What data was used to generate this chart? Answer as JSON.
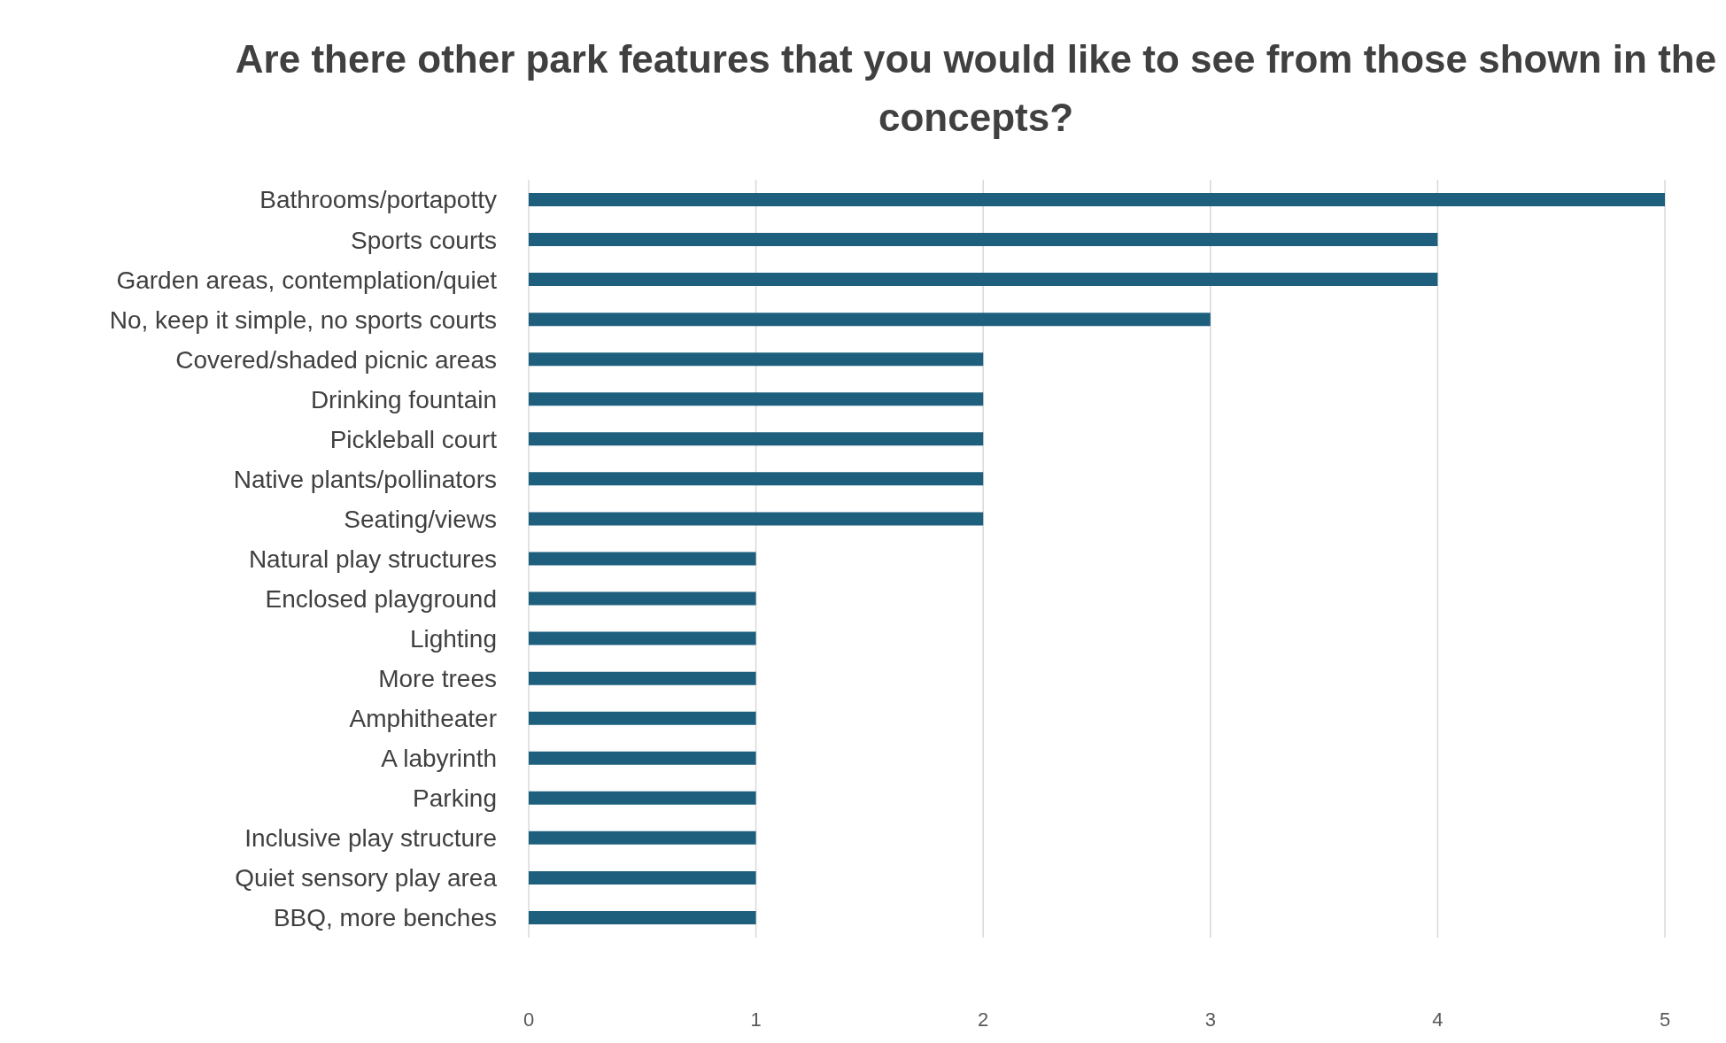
{
  "chart_data": {
    "type": "bar",
    "orientation": "horizontal",
    "title": "Are there other park features that you would like to see from those shown in the concepts?",
    "categories": [
      "Bathrooms/portapotty",
      "Sports courts",
      "Garden areas, contemplation/quiet",
      "No, keep it simple, no sports courts",
      "Covered/shaded picnic areas",
      "Drinking fountain",
      "Pickleball court",
      "Native plants/pollinators",
      "Seating/views",
      "Natural play structures",
      "Enclosed playground",
      "Lighting",
      "More trees",
      "Amphitheater",
      "A labyrinth",
      "Parking",
      "Inclusive play structure",
      "Quiet sensory play area",
      "BBQ, more benches"
    ],
    "values": [
      5,
      4,
      4,
      3,
      2,
      2,
      2,
      2,
      2,
      1,
      1,
      1,
      1,
      1,
      1,
      1,
      1,
      1,
      1
    ],
    "color": "#1d5f7d",
    "xlim": [
      0,
      5
    ],
    "xticks": [
      0,
      1,
      2,
      3,
      4,
      5
    ],
    "grid": "x"
  }
}
